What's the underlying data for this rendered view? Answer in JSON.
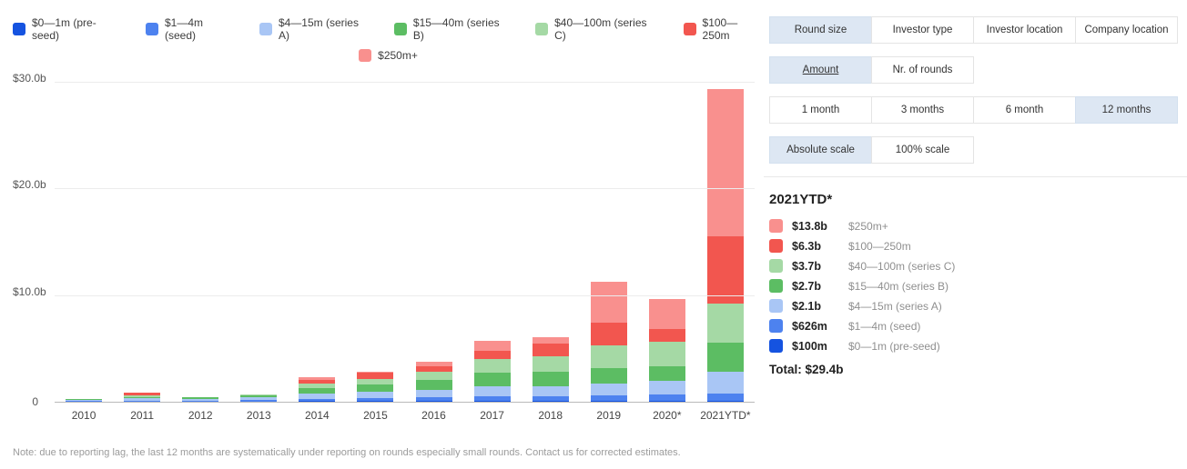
{
  "note": "Note: due to reporting lag, the last 12 months are systematically under reporting on rounds especially small rounds. Contact us for corrected estimates.",
  "chart_data": {
    "type": "bar",
    "stacked": true,
    "title": "",
    "xlabel": "",
    "ylabel": "",
    "grid": true,
    "legend_position": "top",
    "ylim": [
      0,
      30
    ],
    "yticks": [
      {
        "value": 0,
        "label": "0"
      },
      {
        "value": 10,
        "label": "$10.0b"
      },
      {
        "value": 20,
        "label": "$20.0b"
      },
      {
        "value": 30,
        "label": "$30.0b"
      }
    ],
    "categories": [
      "2010",
      "2011",
      "2012",
      "2013",
      "2014",
      "2015",
      "2016",
      "2017",
      "2018",
      "2019",
      "2020*",
      "2021YTD*"
    ],
    "series": [
      {
        "name": "$0—1m (pre-seed)",
        "color": "#1553e0",
        "values": [
          0.01,
          0.02,
          0.01,
          0.02,
          0.05,
          0.06,
          0.08,
          0.09,
          0.09,
          0.12,
          0.1,
          0.1
        ]
      },
      {
        "name": "$1—4m (seed)",
        "color": "#4d82ef",
        "values": [
          0.05,
          0.1,
          0.08,
          0.12,
          0.25,
          0.3,
          0.35,
          0.4,
          0.4,
          0.5,
          0.55,
          0.63
        ]
      },
      {
        "name": "$4—15m (series A)",
        "color": "#a9c6f5",
        "values": [
          0.15,
          0.2,
          0.15,
          0.25,
          0.5,
          0.6,
          0.7,
          1.0,
          1.0,
          1.1,
          1.3,
          2.1
        ]
      },
      {
        "name": "$15—40m (series B)",
        "color": "#5cbd63",
        "values": [
          0.05,
          0.15,
          0.15,
          0.2,
          0.5,
          0.7,
          0.9,
          1.2,
          1.3,
          1.4,
          1.4,
          2.7
        ]
      },
      {
        "name": "$40—100m (series C)",
        "color": "#a5d9a5",
        "values": [
          0.0,
          0.1,
          0.08,
          0.1,
          0.45,
          0.5,
          0.8,
          1.3,
          1.5,
          2.2,
          2.3,
          3.7
        ]
      },
      {
        "name": "$100—250m",
        "color": "#f2564f",
        "values": [
          0.0,
          0.25,
          0.0,
          0.0,
          0.3,
          0.55,
          0.5,
          0.8,
          1.2,
          2.1,
          1.2,
          6.3
        ]
      },
      {
        "name": "$250m+",
        "color": "#f9908e",
        "values": [
          0.0,
          0.0,
          0.0,
          0.0,
          0.25,
          0.1,
          0.4,
          0.9,
          0.6,
          3.8,
          2.8,
          13.8
        ]
      }
    ]
  },
  "panel": {
    "tab_rows": [
      {
        "name": "dimension",
        "tabs": [
          {
            "label": "Round size",
            "selected": true
          },
          {
            "label": "Investor type",
            "selected": false
          },
          {
            "label": "Investor location",
            "selected": false
          },
          {
            "label": "Company location",
            "selected": false
          }
        ]
      },
      {
        "name": "metric",
        "tabs": [
          {
            "label": "Amount",
            "selected": true
          },
          {
            "label": "Nr. of rounds",
            "selected": false
          }
        ]
      },
      {
        "name": "period",
        "tabs": [
          {
            "label": "1 month",
            "selected": false
          },
          {
            "label": "3 months",
            "selected": false
          },
          {
            "label": "6 month",
            "selected": false
          },
          {
            "label": "12 months",
            "selected": true
          }
        ]
      },
      {
        "name": "scale",
        "tabs": [
          {
            "label": "Absolute scale",
            "selected": true
          },
          {
            "label": "100% scale",
            "selected": false
          }
        ]
      }
    ],
    "summary": {
      "title": "2021YTD*",
      "items": [
        {
          "amount": "$13.8b",
          "label": "$250m+",
          "color": "#f9908e"
        },
        {
          "amount": "$6.3b",
          "label": "$100—250m",
          "color": "#f2564f"
        },
        {
          "amount": "$3.7b",
          "label": "$40—100m (series C)",
          "color": "#a5d9a5"
        },
        {
          "amount": "$2.7b",
          "label": "$15—40m (series B)",
          "color": "#5cbd63"
        },
        {
          "amount": "$2.1b",
          "label": "$4—15m (series A)",
          "color": "#a9c6f5"
        },
        {
          "amount": "$626m",
          "label": "$1—4m (seed)",
          "color": "#4d82ef"
        },
        {
          "amount": "$100m",
          "label": "$0—1m (pre-seed)",
          "color": "#1553e0"
        }
      ],
      "total": "Total: $29.4b"
    }
  }
}
